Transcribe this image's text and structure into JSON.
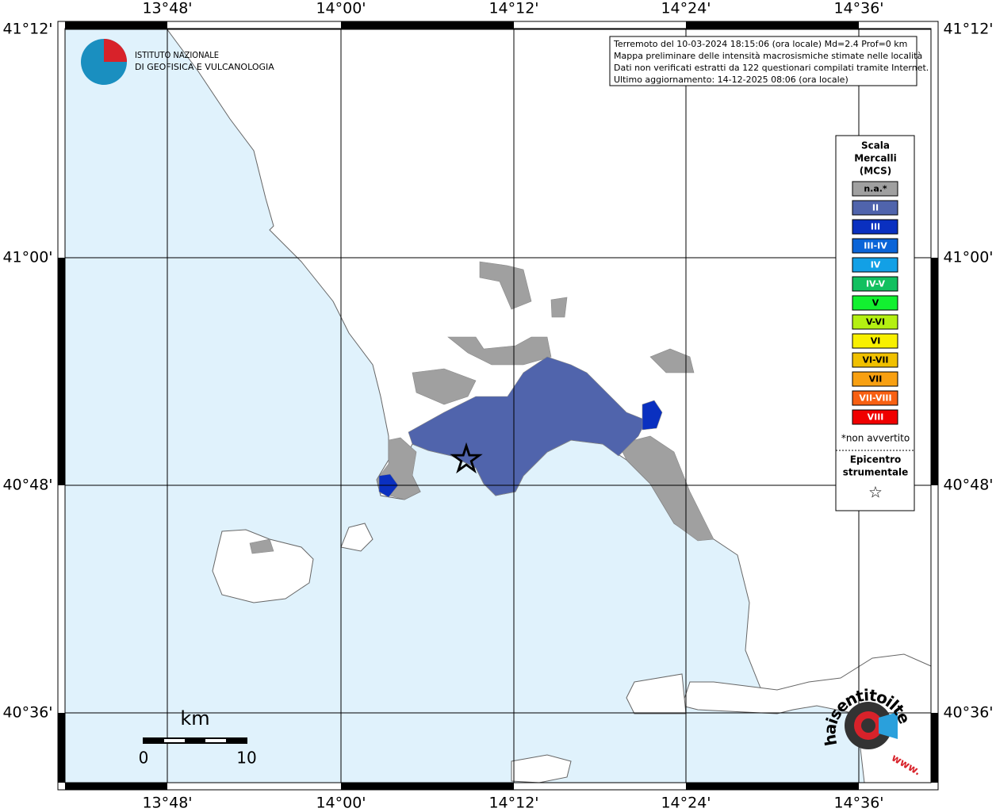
{
  "map": {
    "lon_labels": [
      "13°48'",
      "14°00'",
      "14°12'",
      "14°24'",
      "14°36'"
    ],
    "lat_labels": [
      "41°12'",
      "41°00'",
      "40°48'",
      "40°36'"
    ],
    "info": [
      "Terremoto del 10-03-2024 18:15:06 (ora locale) Md=2.4 Prof=0 km",
      "Mappa preliminare delle intensità macrosismiche stimate nelle località",
      "Dati non verificati estratti da 122 questionari compilati tramite Internet.",
      "Ultimo aggiornamento: 14-12-2025 08:06 (ora locale)"
    ],
    "institute": [
      "ISTITUTO NAZIONALE",
      "DI GEOFISICA E VULCANOLOGIA"
    ],
    "legend": {
      "title": [
        "Scala",
        "Mercalli",
        "(MCS)"
      ],
      "items": [
        {
          "label": "n.a.*",
          "color": "#a0a0a0"
        },
        {
          "label": "II",
          "color": "#5064ac"
        },
        {
          "label": "III",
          "color": "#0a30c0"
        },
        {
          "label": "III-IV",
          "color": "#0a64d8"
        },
        {
          "label": "IV",
          "color": "#12a0e6"
        },
        {
          "label": "IV-V",
          "color": "#12c060"
        },
        {
          "label": "V",
          "color": "#12f030"
        },
        {
          "label": "V-VI",
          "color": "#b4f012"
        },
        {
          "label": "VI",
          "color": "#f8f000"
        },
        {
          "label": "VI-VII",
          "color": "#f0c000"
        },
        {
          "label": "VII",
          "color": "#f8a012"
        },
        {
          "label": "VII-VIII",
          "color": "#f86012"
        },
        {
          "label": "VIII",
          "color": "#f00000"
        }
      ],
      "note": "*non avvertito",
      "epicenter": [
        "Epicentro",
        "strumentale"
      ],
      "symbol": "☆"
    },
    "scale": {
      "unit": "km",
      "start": "0",
      "end": "10"
    },
    "logo": {
      "site": "haisentitoilterremoto.it",
      "www": "www."
    }
  }
}
